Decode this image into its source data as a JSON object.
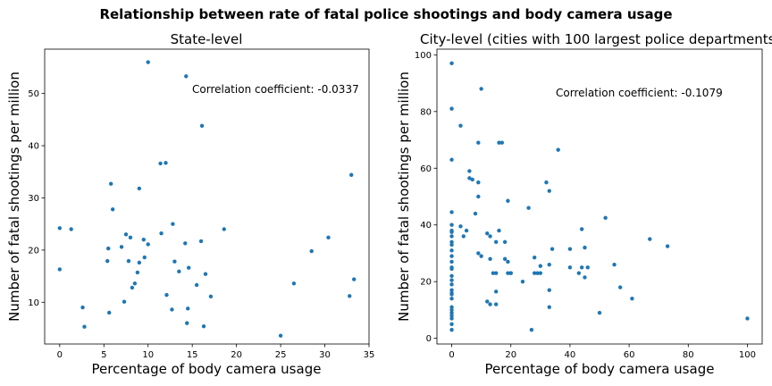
{
  "suptitle": "Relationship between rate of fatal police shootings and body camera usage",
  "colors": {
    "points": "#1f77b4",
    "background": "#ffffff",
    "axes": "#000000"
  },
  "chart_data": [
    {
      "type": "scatter",
      "title": "State-level",
      "xlabel": "Percentage of body camera usage",
      "ylabel": "Number of fatal shootings per million",
      "xlim": [
        -1.7,
        35
      ],
      "ylim": [
        2,
        58.5
      ],
      "xticks": [
        0,
        5,
        10,
        15,
        20,
        25,
        30,
        35
      ],
      "yticks": [
        10,
        20,
        30,
        40,
        50
      ],
      "annotation": "Correlation coefficient: -0.0337",
      "grid": false,
      "x": [
        0,
        0,
        1.3,
        2.6,
        2.8,
        5.4,
        5.5,
        5.6,
        5.8,
        6.0,
        7.0,
        7.3,
        7.5,
        7.8,
        8.0,
        8.2,
        8.5,
        8.8,
        9.0,
        9.0,
        9.5,
        9.6,
        10.0,
        11.4,
        11.5,
        12.0,
        12.1,
        12.7,
        12.8,
        13.0,
        13.5,
        14.2,
        14.3,
        14.4,
        14.5,
        14.6,
        15.5,
        16.0,
        16.1,
        16.3,
        16.5,
        17.1,
        18.6,
        25.0,
        26.5,
        28.5,
        30.4,
        32.8,
        33.0,
        33.3,
        10.0
      ],
      "y": [
        24.2,
        16.3,
        24.0,
        9.0,
        5.3,
        17.9,
        20.3,
        8.0,
        32.7,
        27.8,
        20.6,
        10.1,
        23.0,
        17.9,
        22.4,
        12.8,
        13.6,
        15.7,
        31.8,
        17.6,
        22.0,
        18.6,
        21.1,
        36.6,
        23.2,
        36.7,
        11.4,
        8.6,
        25.0,
        17.8,
        15.9,
        21.3,
        53.3,
        6.0,
        8.8,
        16.6,
        13.3,
        21.7,
        43.8,
        5.4,
        15.4,
        11.1,
        24.0,
        3.6,
        13.6,
        19.8,
        22.4,
        11.2,
        34.4,
        14.4,
        56.0
      ]
    },
    {
      "type": "scatter",
      "title": "City-level (cities with 100 largest police departments)",
      "xlabel": "Percentage of body camera usage",
      "ylabel": "Number of fatal shootings per million",
      "xlim": [
        -5,
        105
      ],
      "ylim": [
        -2,
        102
      ],
      "xticks": [
        0,
        20,
        40,
        60,
        80,
        100
      ],
      "yticks": [
        0,
        20,
        40,
        60,
        80,
        100
      ],
      "annotation": "Correlation coefficient: -0.1079",
      "grid": false,
      "x": [
        0,
        0,
        0,
        0,
        0,
        0,
        0,
        0,
        0,
        0,
        0,
        0,
        0,
        0,
        0,
        0,
        0,
        0,
        0,
        0,
        0,
        0,
        0,
        0,
        0,
        0,
        0,
        0,
        0,
        3,
        3,
        4,
        5,
        6,
        6,
        7,
        8,
        9,
        9,
        9,
        9,
        10,
        10,
        12,
        12,
        13,
        13,
        13,
        14,
        15,
        15,
        15,
        15,
        16,
        16,
        17,
        18,
        18,
        19,
        19,
        19,
        20,
        20,
        24,
        26,
        27,
        28,
        28,
        29,
        30,
        30,
        32,
        33,
        33,
        33,
        33,
        34,
        36,
        40,
        40,
        43,
        44,
        44,
        45,
        45,
        46,
        50,
        52,
        55,
        57,
        61,
        67,
        73,
        100
      ],
      "y": [
        97,
        81,
        63,
        44.5,
        37.5,
        36,
        34,
        31,
        29,
        27,
        25,
        24.5,
        22,
        20.5,
        19,
        17,
        16,
        15.5,
        14,
        11,
        10,
        9,
        8,
        7,
        5,
        3,
        40,
        38,
        33,
        75,
        39.5,
        36,
        38,
        56.5,
        59,
        56,
        44,
        69,
        55,
        50,
        30,
        88,
        29,
        37,
        13,
        36,
        28,
        12,
        23,
        34,
        23,
        16.5,
        12,
        69,
        38,
        69,
        34,
        28,
        23,
        48.5,
        27,
        23,
        23,
        20,
        46,
        3,
        28.5,
        23,
        23,
        25.5,
        23,
        55,
        26,
        52,
        17,
        11,
        31.5,
        66.5,
        31.5,
        25,
        23,
        38.5,
        25,
        32,
        21.5,
        25,
        9,
        42.5,
        26,
        18,
        14,
        35,
        32.5,
        7
      ]
    }
  ]
}
